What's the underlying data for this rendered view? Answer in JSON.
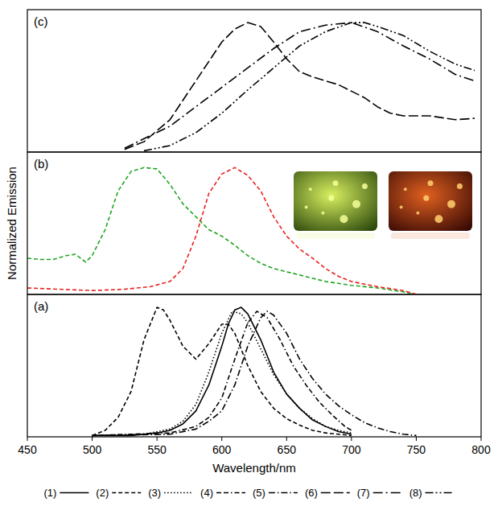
{
  "chart_data": [
    {
      "type": "line",
      "title": "(a)",
      "x_label": "Wavelength/nm",
      "xlim": [
        450,
        800
      ],
      "xticks": [
        450,
        500,
        550,
        600,
        650,
        700,
        750,
        800
      ],
      "ylim": [
        0,
        1.1
      ],
      "tick_labels": "x",
      "grid": false,
      "legend": "bottom",
      "series": [
        {
          "name": "(1)",
          "color": "#000000",
          "line_style": "solid",
          "x": [
            500,
            510,
            520,
            530,
            540,
            550,
            560,
            570,
            580,
            590,
            600,
            605,
            610,
            615,
            620,
            630,
            640,
            650,
            660,
            670,
            680,
            690,
            700
          ],
          "values": [
            0.01,
            0.01,
            0.01,
            0.01,
            0.02,
            0.03,
            0.05,
            0.1,
            0.2,
            0.4,
            0.7,
            0.87,
            0.98,
            1.0,
            0.95,
            0.75,
            0.5,
            0.33,
            0.22,
            0.13,
            0.08,
            0.04,
            0.02
          ]
        },
        {
          "name": "(2)",
          "color": "#000000",
          "line_style": "dashed",
          "x": [
            500,
            510,
            520,
            530,
            540,
            550,
            555,
            560,
            570,
            580,
            590,
            600,
            605,
            610,
            620,
            630,
            640,
            650,
            660,
            670,
            680,
            690,
            700
          ],
          "values": [
            0.01,
            0.05,
            0.15,
            0.35,
            0.75,
            1.0,
            0.98,
            0.9,
            0.7,
            0.6,
            0.72,
            0.87,
            0.87,
            0.8,
            0.55,
            0.35,
            0.22,
            0.14,
            0.09,
            0.05,
            0.03,
            0.02,
            0.01
          ]
        },
        {
          "name": "(3)",
          "color": "#000000",
          "line_style": "dotted",
          "x": [
            500,
            540,
            560,
            570,
            580,
            590,
            600,
            608,
            615,
            620,
            630,
            640,
            650,
            660,
            670,
            680,
            690,
            700
          ],
          "values": [
            0.01,
            0.02,
            0.06,
            0.12,
            0.25,
            0.5,
            0.8,
            0.97,
            0.95,
            0.88,
            0.68,
            0.48,
            0.33,
            0.22,
            0.14,
            0.08,
            0.05,
            0.03
          ]
        },
        {
          "name": "(4)",
          "color": "#000000",
          "line_style": "dash-dash-dot",
          "x": [
            500,
            560,
            580,
            590,
            600,
            610,
            620,
            627,
            635,
            645,
            655,
            665,
            675,
            685,
            695,
            700
          ],
          "values": [
            0.01,
            0.03,
            0.08,
            0.15,
            0.3,
            0.6,
            0.88,
            0.97,
            0.92,
            0.75,
            0.55,
            0.4,
            0.27,
            0.17,
            0.08,
            0.05
          ]
        },
        {
          "name": "(5)",
          "color": "#000000",
          "line_style": "dash-dot",
          "x": [
            500,
            560,
            580,
            590,
            600,
            610,
            620,
            630,
            635,
            640,
            650,
            660,
            670,
            680,
            690,
            700,
            710,
            720,
            730,
            740,
            750
          ],
          "values": [
            0.01,
            0.02,
            0.06,
            0.12,
            0.2,
            0.4,
            0.7,
            0.92,
            0.97,
            0.94,
            0.8,
            0.6,
            0.45,
            0.33,
            0.24,
            0.17,
            0.11,
            0.07,
            0.04,
            0.02,
            0.01
          ]
        }
      ]
    },
    {
      "type": "line",
      "title": "(b)",
      "y_label": "Normalized Emission",
      "xlim": [
        450,
        800
      ],
      "ylim": [
        0,
        1.1
      ],
      "tick_labels": false,
      "grid": false,
      "series": [
        {
          "color": "#1fa51f",
          "line_style": "dashed",
          "x": [
            450,
            460,
            470,
            480,
            487,
            495,
            500,
            510,
            520,
            530,
            540,
            550,
            560,
            570,
            580,
            590,
            600,
            610,
            620,
            630,
            640,
            660,
            680,
            700,
            720,
            740,
            750
          ],
          "values": [
            0.28,
            0.27,
            0.27,
            0.3,
            0.31,
            0.25,
            0.3,
            0.5,
            0.8,
            0.95,
            0.98,
            0.97,
            0.85,
            0.7,
            0.6,
            0.5,
            0.45,
            0.38,
            0.3,
            0.24,
            0.2,
            0.15,
            0.1,
            0.07,
            0.05,
            0.02,
            0.0
          ]
        },
        {
          "color": "#e8211f",
          "line_style": "dashed",
          "x": [
            450,
            475,
            500,
            525,
            545,
            560,
            570,
            580,
            590,
            600,
            610,
            620,
            630,
            640,
            650,
            660,
            670,
            680,
            690,
            700,
            720,
            740,
            750
          ],
          "values": [
            0.05,
            0.04,
            0.03,
            0.04,
            0.06,
            0.1,
            0.2,
            0.45,
            0.78,
            0.93,
            0.98,
            0.92,
            0.8,
            0.6,
            0.45,
            0.35,
            0.28,
            0.2,
            0.14,
            0.1,
            0.06,
            0.03,
            0.0
          ]
        }
      ]
    },
    {
      "type": "line",
      "title": "(c)",
      "xlim": [
        450,
        800
      ],
      "ylim": [
        0,
        1.1
      ],
      "tick_labels": false,
      "grid": false,
      "series": [
        {
          "name": "(6)",
          "color": "#000000",
          "line_style": "long-dash",
          "x": [
            525,
            540,
            560,
            580,
            600,
            610,
            620,
            630,
            640,
            650,
            660,
            670,
            680,
            690,
            700,
            710,
            720,
            730,
            740,
            760,
            780,
            795
          ],
          "values": [
            0.02,
            0.08,
            0.25,
            0.55,
            0.85,
            0.95,
            1.0,
            0.97,
            0.85,
            0.72,
            0.62,
            0.58,
            0.55,
            0.52,
            0.47,
            0.42,
            0.35,
            0.3,
            0.28,
            0.28,
            0.25,
            0.26
          ]
        },
        {
          "name": "(7)",
          "color": "#000000",
          "line_style": "long-dash-dot",
          "x": [
            525,
            560,
            600,
            640,
            660,
            680,
            700,
            720,
            740,
            760,
            780,
            795
          ],
          "values": [
            0.03,
            0.2,
            0.5,
            0.8,
            0.93,
            0.98,
            1.0,
            0.93,
            0.82,
            0.72,
            0.6,
            0.55
          ]
        },
        {
          "name": "(8)",
          "color": "#000000",
          "line_style": "dash-dot-dot",
          "x": [
            540,
            560,
            580,
            600,
            620,
            640,
            660,
            680,
            700,
            710,
            720,
            740,
            760,
            780,
            795
          ],
          "values": [
            0.01,
            0.05,
            0.15,
            0.3,
            0.48,
            0.65,
            0.82,
            0.93,
            1.0,
            1.0,
            0.97,
            0.9,
            0.78,
            0.68,
            0.63
          ]
        }
      ]
    }
  ]
}
